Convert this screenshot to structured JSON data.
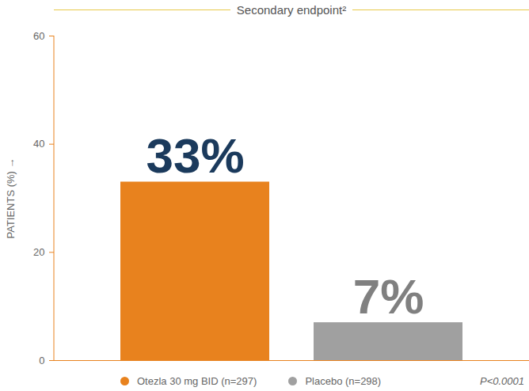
{
  "chart_data": {
    "type": "bar",
    "title": "Secondary endpoint²",
    "categories": [
      "Otezla 30 mg BID (n=297)",
      "Placebo (n=298)"
    ],
    "values": [
      33,
      7
    ],
    "value_labels": [
      "33%",
      "7%"
    ],
    "colors": [
      "#E8821E",
      "#A0A0A0"
    ],
    "ylim": [
      0,
      60
    ],
    "yticks": [
      0,
      20,
      40,
      60
    ],
    "y_label": "PATIENTS (%)",
    "data_labels": true,
    "legend": "bottom",
    "annotations": [
      "P<0.0001"
    ]
  }
}
